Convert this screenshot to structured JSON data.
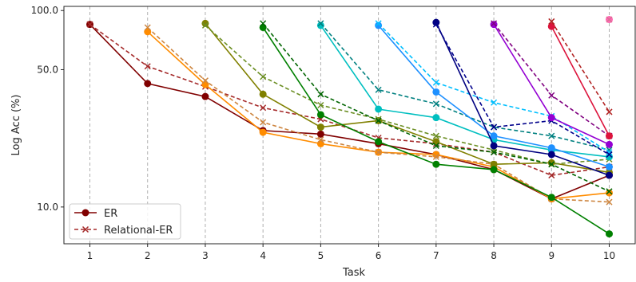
{
  "chart_data": {
    "type": "line",
    "xlabel": "Task",
    "ylabel": "Log Acc (%)",
    "yscale": "log",
    "xlim": [
      0.55,
      10.45
    ],
    "ylim": [
      6.5,
      105
    ],
    "x_ticks": [
      1,
      2,
      3,
      4,
      5,
      6,
      7,
      8,
      9,
      10
    ],
    "x_tick_labels": [
      "1",
      "2",
      "3",
      "4",
      "5",
      "6",
      "7",
      "8",
      "9",
      "10"
    ],
    "y_ticks": [
      10,
      50,
      100
    ],
    "y_tick_labels": [
      "10.0",
      "50.0",
      "100.0"
    ],
    "grid": "vertical dashed at each task",
    "legend": {
      "placement": "lower-left",
      "entries": [
        {
          "label": "ER",
          "color": "#800000",
          "linestyle": "solid",
          "marker": "circle"
        },
        {
          "label": "Relational-ER",
          "color": "#A52A2A",
          "linestyle": "dashed",
          "marker": "x"
        }
      ]
    },
    "series": [
      {
        "method": "ER",
        "color": "#800000",
        "x": [
          1,
          2,
          3,
          4,
          5,
          6,
          7,
          8,
          9,
          10
        ],
        "values": [
          85,
          42.5,
          36.5,
          24.5,
          23.5,
          21,
          18.5,
          15.5,
          11,
          14.5
        ]
      },
      {
        "method": "Relational-ER",
        "color": "#A52A2A",
        "x": [
          1,
          2,
          3,
          4,
          5,
          6,
          7,
          8,
          9,
          10
        ],
        "values": [
          85,
          52,
          41,
          32,
          28,
          22.5,
          21,
          19,
          14.5,
          16
        ]
      },
      {
        "method": "ER",
        "color": "#FF8C00",
        "x": [
          2,
          3,
          4,
          5,
          6,
          7,
          8,
          9,
          10
        ],
        "values": [
          78,
          42,
          24,
          21,
          19,
          18.5,
          16,
          11,
          11.8
        ]
      },
      {
        "method": "Relational-ER",
        "color": "#CD853F",
        "x": [
          2,
          3,
          4,
          5,
          6,
          7,
          8,
          9,
          10
        ],
        "values": [
          82,
          44,
          27,
          22,
          19,
          18,
          16.5,
          11,
          10.6
        ]
      },
      {
        "method": "ER",
        "color": "#808000",
        "x": [
          3,
          4,
          5,
          6,
          7,
          8,
          9,
          10
        ],
        "values": [
          86,
          37.5,
          25.5,
          27.5,
          21.5,
          16.5,
          16.8,
          15
        ]
      },
      {
        "method": "Relational-ER",
        "color": "#6B8E23",
        "x": [
          3,
          4,
          5,
          6,
          7,
          8,
          9,
          10
        ],
        "values": [
          84,
          46,
          33,
          28,
          23,
          19.5,
          16.5,
          17.5
        ]
      },
      {
        "method": "ER",
        "color": "#008000",
        "x": [
          4,
          5,
          6,
          7,
          8,
          9,
          10
        ],
        "values": [
          82,
          29.5,
          21.5,
          16.5,
          15.5,
          11.2,
          7.3
        ]
      },
      {
        "method": "Relational-ER",
        "color": "#006400",
        "x": [
          4,
          5,
          6,
          7,
          8,
          9,
          10
        ],
        "values": [
          86,
          37.5,
          27.5,
          20.5,
          19,
          16.5,
          12
        ]
      },
      {
        "method": "ER",
        "color": "#00BFC0",
        "x": [
          5,
          6,
          7,
          8,
          9,
          10
        ],
        "values": [
          84,
          31.5,
          28.5,
          22,
          19.5,
          18
        ]
      },
      {
        "method": "Relational-ER",
        "color": "#008080",
        "x": [
          5,
          6,
          7,
          8,
          9,
          10
        ],
        "values": [
          86,
          39.5,
          33.5,
          25.5,
          23,
          19.5
        ]
      },
      {
        "method": "ER",
        "color": "#1E90FF",
        "x": [
          6,
          7,
          8,
          9,
          10
        ],
        "values": [
          84,
          38.5,
          23,
          20,
          16
        ]
      },
      {
        "method": "Relational-ER",
        "color": "#00BFFF",
        "x": [
          6,
          7,
          8,
          9,
          10
        ],
        "values": [
          86,
          43,
          34,
          29,
          19
        ]
      },
      {
        "method": "ER",
        "color": "#000080",
        "x": [
          7,
          8,
          9,
          10
        ],
        "values": [
          87,
          20.5,
          18.5,
          14.5
        ]
      },
      {
        "method": "Relational-ER",
        "color": "#00008B",
        "x": [
          7,
          8,
          9,
          10
        ],
        "values": [
          85,
          25.5,
          27.5,
          18.5
        ]
      },
      {
        "method": "ER",
        "color": "#9400D3",
        "x": [
          8,
          9,
          10
        ],
        "values": [
          85,
          28.5,
          20.8
        ]
      },
      {
        "method": "Relational-ER",
        "color": "#800080",
        "x": [
          8,
          9,
          10
        ],
        "values": [
          86,
          37,
          23
        ]
      },
      {
        "method": "ER",
        "color": "#DC143C",
        "x": [
          9,
          10
        ],
        "values": [
          83,
          23
        ]
      },
      {
        "method": "Relational-ER",
        "color": "#B22222",
        "x": [
          9,
          10
        ],
        "values": [
          88,
          30.5
        ]
      },
      {
        "method": "ER",
        "color": "#FF69B4",
        "x": [
          10
        ],
        "values": [
          90
        ]
      },
      {
        "method": "Relational-ER",
        "color": "#DB7093",
        "x": [
          10
        ],
        "values": [
          90
        ]
      }
    ]
  }
}
